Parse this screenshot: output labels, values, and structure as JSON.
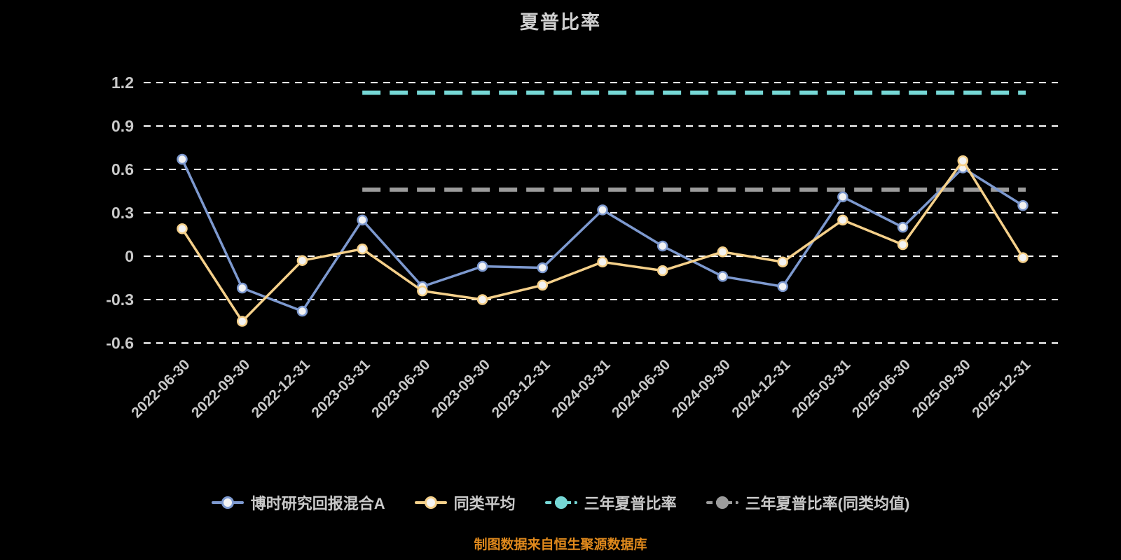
{
  "page": {
    "title": "夏普比率",
    "caption": "制图数据来自恒生聚源数据库"
  },
  "colors": {
    "background": "#000000",
    "grid": "#ffffff",
    "axis_text": "#c9c9c9",
    "title_text": "#cfcfcf",
    "caption_text": "#e0891c"
  },
  "chart_data": {
    "type": "line",
    "title": "夏普比率",
    "xlabel": "",
    "ylabel": "",
    "ylim": [
      -0.6,
      1.2
    ],
    "yticks": [
      -0.6,
      -0.3,
      0,
      0.3,
      0.6,
      0.9,
      1.2
    ],
    "grid": "dashed-horizontal",
    "legend_position": "bottom",
    "categories": [
      "2022-06-30",
      "2022-09-30",
      "2022-12-31",
      "2023-03-31",
      "2023-06-30",
      "2023-09-30",
      "2023-12-31",
      "2024-03-31",
      "2024-06-30",
      "2024-09-30",
      "2024-12-31",
      "2025-03-31",
      "2025-06-30",
      "2025-09-30",
      "2025-12-31"
    ],
    "series": [
      {
        "name": "博时研究回报混合A",
        "color": "#7d99cf",
        "values": [
          0.67,
          -0.22,
          -0.38,
          0.25,
          -0.21,
          -0.07,
          -0.08,
          0.32,
          0.07,
          -0.14,
          -0.21,
          0.41,
          0.2,
          0.61,
          0.35
        ]
      },
      {
        "name": "同类平均",
        "color": "#f5d08a",
        "values": [
          0.19,
          -0.45,
          -0.03,
          0.05,
          -0.24,
          -0.3,
          -0.2,
          -0.04,
          -0.1,
          0.03,
          -0.04,
          0.25,
          0.08,
          0.66,
          -0.01
        ]
      }
    ],
    "reference_lines": [
      {
        "name": "三年夏普比率",
        "color": "#76d8d6",
        "value": 1.13,
        "start_category": "2023-03-31",
        "style": "dashed"
      },
      {
        "name": "三年夏普比率(同类均值)",
        "color": "#9b9b9b",
        "value": 0.46,
        "start_category": "2023-03-31",
        "style": "dashed"
      }
    ]
  },
  "legend": {
    "items": [
      {
        "label": "博时研究回报混合A"
      },
      {
        "label": "同类平均"
      },
      {
        "label": "三年夏普比率"
      },
      {
        "label": "三年夏普比率(同类均值)"
      }
    ]
  }
}
